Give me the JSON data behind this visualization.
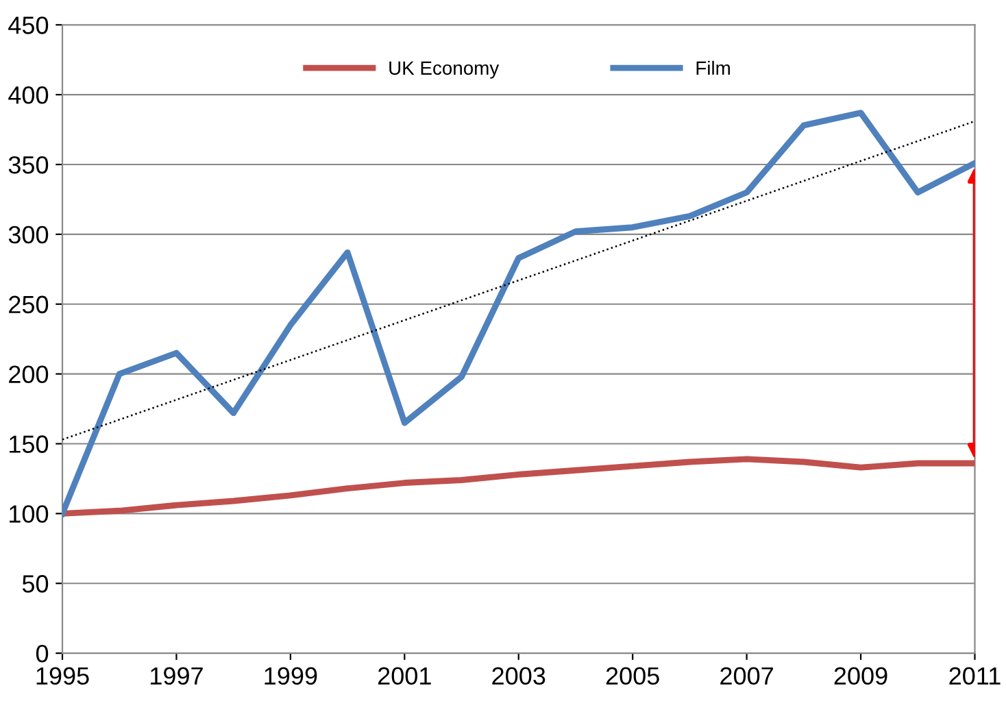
{
  "chart_data": {
    "type": "line",
    "x": [
      1995,
      1996,
      1997,
      1998,
      1999,
      2000,
      2001,
      2002,
      2003,
      2004,
      2005,
      2006,
      2007,
      2008,
      2009,
      2010,
      2011
    ],
    "series": [
      {
        "name": "UK Economy",
        "color": "#c0504d",
        "values": [
          100,
          102,
          106,
          109,
          113,
          118,
          122,
          124,
          128,
          131,
          134,
          137,
          139,
          137,
          133,
          136,
          136
        ]
      },
      {
        "name": "Film",
        "color": "#4f81bd",
        "values": [
          100,
          200,
          215,
          172,
          235,
          287,
          165,
          198,
          283,
          302,
          305,
          313,
          330,
          378,
          387,
          330,
          351
        ]
      },
      {
        "type": "line",
        "color": "#000000",
        "line_style": "dotted",
        "x": [
          1995,
          2011
        ],
        "values": [
          153,
          381
        ]
      }
    ],
    "xlim": [
      1995,
      2011
    ],
    "xticks": [
      1995,
      1997,
      1999,
      2001,
      2003,
      2005,
      2007,
      2009,
      2011
    ],
    "ylim": [
      0,
      450
    ],
    "yticks": [
      0,
      50,
      100,
      150,
      200,
      250,
      300,
      350,
      400,
      450
    ],
    "grid": "y",
    "legend": "top",
    "marker": "none",
    "line_style": "solid"
  }
}
